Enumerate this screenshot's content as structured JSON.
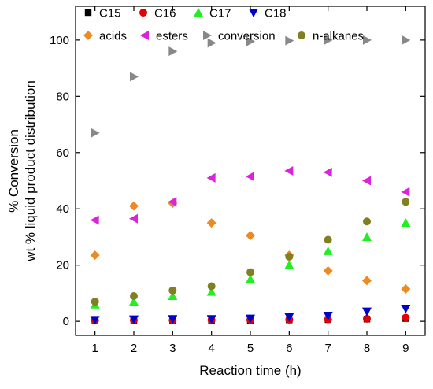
{
  "chart_data": {
    "type": "scatter",
    "xlabel": "Reaction time (h)",
    "ylabel_lines": [
      "% Conversion",
      "wt % liquid product distribution"
    ],
    "xlim": [
      0.5,
      9.5
    ],
    "ylim": [
      -5,
      112
    ],
    "x_ticks": [
      1,
      2,
      3,
      4,
      5,
      6,
      7,
      8,
      9
    ],
    "y_ticks": [
      0,
      20,
      40,
      60,
      80,
      100
    ],
    "x": [
      1,
      2,
      3,
      4,
      5,
      6,
      7,
      8,
      9
    ],
    "grid": false,
    "legend_placement": "top, inside plot",
    "series": [
      {
        "name": "C15",
        "marker": "square",
        "color": "#000000",
        "values": [
          0.2,
          0.2,
          0.3,
          0.3,
          0.3,
          0.5,
          0.6,
          0.8,
          1.0
        ]
      },
      {
        "name": "C16",
        "marker": "circle",
        "color": "#e00000",
        "values": [
          0.3,
          0.4,
          0.4,
          0.5,
          0.5,
          0.6,
          0.7,
          0.9,
          1.3
        ]
      },
      {
        "name": "C17",
        "marker": "triangle-up",
        "color": "#22ee22",
        "values": [
          6.0,
          7.0,
          9.0,
          10.5,
          15.0,
          20.0,
          25.0,
          30.0,
          35.0
        ]
      },
      {
        "name": "C18",
        "marker": "triangle-down",
        "color": "#0000cc",
        "values": [
          0.5,
          0.7,
          0.8,
          0.8,
          1.0,
          1.5,
          2.0,
          3.5,
          4.5
        ]
      },
      {
        "name": "acids",
        "marker": "diamond",
        "color": "#ee8a22",
        "values": [
          23.5,
          41.0,
          42.0,
          35.0,
          30.5,
          23.5,
          18.0,
          14.5,
          11.5
        ]
      },
      {
        "name": "esters",
        "marker": "triangle-left",
        "color": "#dd22dd",
        "values": [
          36.0,
          36.5,
          42.5,
          51.0,
          51.5,
          53.5,
          53.0,
          50.0,
          46.0
        ]
      },
      {
        "name": "conversion",
        "marker": "triangle-right",
        "color": "#888888",
        "values": [
          67.0,
          87.0,
          96.0,
          99.0,
          99.5,
          99.8,
          100.0,
          100.0,
          100.0
        ]
      },
      {
        "name": "n-alkanes",
        "marker": "circle",
        "color": "#808020",
        "values": [
          7.0,
          9.0,
          11.0,
          12.5,
          17.5,
          23.0,
          29.0,
          35.5,
          42.5
        ]
      }
    ]
  }
}
